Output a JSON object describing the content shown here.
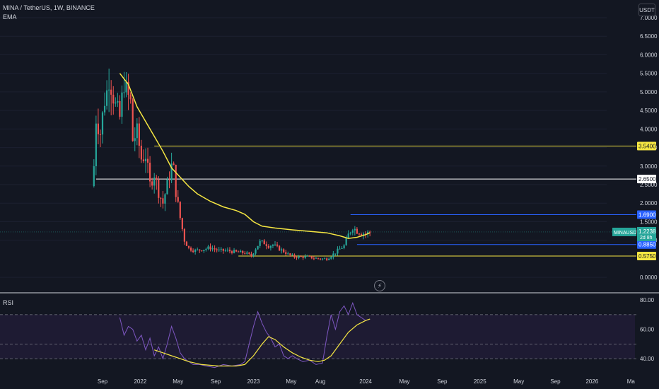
{
  "header": {
    "title": "MINA / TetherUS, 1W, BINANCE",
    "indicator": "EMA",
    "currency": "USDT",
    "rsi_label": "RSI"
  },
  "colors": {
    "background": "#131722",
    "up": "#26a69a",
    "down": "#ef5350",
    "ema": "#f5e642",
    "rsi_line": "#7e57c2",
    "rsi_ma": "#f5e642",
    "rsi_band": "#1e1b33",
    "white_line": "#ffffff",
    "blue_line": "#2962ff"
  },
  "chart_data": [
    {
      "type": "candlestick",
      "title": "MINA / TetherUS, 1W, BINANCE",
      "y_ticks": [
        "0.0000",
        "1.0000",
        "1.5000",
        "2.0000",
        "2.5000",
        "3.0000",
        "3.5000",
        "4.0000",
        "4.5000",
        "5.0000",
        "5.5000",
        "6.0000",
        "6.5000",
        "7.0000"
      ],
      "ylim": [
        -0.15,
        7.0
      ],
      "x_ticks": [
        {
          "label": "Sep",
          "t": 0
        },
        {
          "label": "2022",
          "t": 17.5
        },
        {
          "label": "May",
          "t": 35
        },
        {
          "label": "Sep",
          "t": 52.5
        },
        {
          "label": "2023",
          "t": 70
        },
        {
          "label": "May",
          "t": 87.5
        },
        {
          "label": "Aug",
          "t": 101
        },
        {
          "label": "2024",
          "t": 122
        },
        {
          "label": "May",
          "t": 140
        },
        {
          "label": "Sep",
          "t": 157.5
        },
        {
          "label": "2025",
          "t": 175
        },
        {
          "label": "May",
          "t": 193
        },
        {
          "label": "Sep",
          "t": 210
        },
        {
          "label": "2026",
          "t": 227
        },
        {
          "label": "Ma",
          "t": 245
        }
      ],
      "key_points": [
        [
          -4,
          3.0
        ],
        [
          -3,
          4.3
        ],
        [
          -1,
          3.9
        ],
        [
          1,
          4.8
        ],
        [
          2,
          5.0
        ],
        [
          3,
          5.4
        ],
        [
          4,
          5.2
        ],
        [
          6,
          4.6
        ],
        [
          8,
          4.3
        ],
        [
          10,
          5.3
        ],
        [
          11,
          5.0
        ],
        [
          13,
          4.7
        ],
        [
          14,
          3.7
        ],
        [
          16,
          3.9
        ],
        [
          18,
          3.2
        ],
        [
          20,
          3.3
        ],
        [
          22,
          2.5
        ],
        [
          24,
          2.8
        ],
        [
          26,
          2.3
        ],
        [
          28,
          2.0
        ],
        [
          30,
          2.5
        ],
        [
          32,
          3.0
        ],
        [
          33,
          2.9
        ],
        [
          34,
          2.3
        ],
        [
          36,
          1.6
        ],
        [
          38,
          1.0
        ],
        [
          40,
          0.78
        ],
        [
          43,
          0.72
        ],
        [
          46,
          0.75
        ],
        [
          50,
          0.8
        ],
        [
          54,
          0.72
        ],
        [
          58,
          0.72
        ],
        [
          62,
          0.68
        ],
        [
          66,
          0.66
        ],
        [
          69,
          0.58
        ],
        [
          71,
          0.78
        ],
        [
          73,
          0.95
        ],
        [
          75,
          0.93
        ],
        [
          77,
          0.85
        ],
        [
          79,
          0.88
        ],
        [
          81,
          0.8
        ],
        [
          84,
          0.7
        ],
        [
          86,
          0.62
        ],
        [
          89,
          0.55
        ],
        [
          92,
          0.55
        ],
        [
          95,
          0.55
        ],
        [
          98,
          0.52
        ],
        [
          101,
          0.5
        ],
        [
          104,
          0.5
        ],
        [
          106,
          0.58
        ],
        [
          109,
          0.72
        ],
        [
          112,
          0.85
        ],
        [
          114,
          1.15
        ],
        [
          116,
          1.35
        ],
        [
          118,
          1.25
        ],
        [
          120,
          1.2
        ],
        [
          122,
          1.18
        ],
        [
          124,
          1.22
        ]
      ],
      "ema_path": [
        [
          8,
          5.5
        ],
        [
          12,
          5.2
        ],
        [
          16,
          4.6
        ],
        [
          20,
          4.2
        ],
        [
          24,
          3.8
        ],
        [
          28,
          3.4
        ],
        [
          32,
          2.95
        ],
        [
          36,
          2.7
        ],
        [
          40,
          2.45
        ],
        [
          44,
          2.25
        ],
        [
          50,
          2.05
        ],
        [
          56,
          1.9
        ],
        [
          62,
          1.8
        ],
        [
          66,
          1.7
        ],
        [
          70,
          1.5
        ],
        [
          74,
          1.38
        ],
        [
          80,
          1.33
        ],
        [
          88,
          1.28
        ],
        [
          96,
          1.24
        ],
        [
          104,
          1.2
        ],
        [
          110,
          1.12
        ],
        [
          114,
          1.05
        ],
        [
          118,
          1.08
        ],
        [
          122,
          1.15
        ],
        [
          124,
          1.2
        ]
      ],
      "levels": [
        {
          "name": "level-3540",
          "value": 3.54,
          "label": "3.5400",
          "color": "#f5e642",
          "start_t": 24
        },
        {
          "name": "level-2650",
          "value": 2.65,
          "label": "2.6500",
          "color": "#ffffff",
          "start_t": -3
        },
        {
          "name": "level-1690",
          "value": 1.69,
          "label": "1.6900",
          "color": "#2962ff",
          "start_t": 115
        },
        {
          "name": "level-0885",
          "value": 0.885,
          "label": "0.8850",
          "color": "#2962ff",
          "start_t": 118
        },
        {
          "name": "level-0575",
          "value": 0.575,
          "label": "0.5750",
          "color": "#f5e642",
          "start_t": 63
        }
      ],
      "current": {
        "symbol": "MINAUSDT",
        "price": "1.2238",
        "countdown": "2d 8h",
        "value": 1.2238
      }
    },
    {
      "type": "line",
      "y_ticks": [
        "40.00",
        "60.00",
        "80.00"
      ],
      "ylim": [
        28,
        82
      ],
      "bands": [
        40,
        50,
        70
      ],
      "rsi_points": [
        [
          8,
          68
        ],
        [
          10,
          56
        ],
        [
          12,
          62
        ],
        [
          14,
          60
        ],
        [
          16,
          52
        ],
        [
          18,
          56
        ],
        [
          20,
          46
        ],
        [
          22,
          54
        ],
        [
          24,
          42
        ],
        [
          26,
          48
        ],
        [
          28,
          40
        ],
        [
          30,
          50
        ],
        [
          32,
          62
        ],
        [
          34,
          54
        ],
        [
          36,
          44
        ],
        [
          38,
          40
        ],
        [
          40,
          38
        ],
        [
          42,
          36
        ],
        [
          45,
          36
        ],
        [
          48,
          35
        ],
        [
          52,
          34
        ],
        [
          56,
          36
        ],
        [
          60,
          35
        ],
        [
          64,
          36
        ],
        [
          66,
          38
        ],
        [
          68,
          50
        ],
        [
          70,
          62
        ],
        [
          72,
          72
        ],
        [
          74,
          64
        ],
        [
          76,
          58
        ],
        [
          78,
          54
        ],
        [
          80,
          48
        ],
        [
          82,
          50
        ],
        [
          84,
          42
        ],
        [
          86,
          40
        ],
        [
          88,
          42
        ],
        [
          90,
          40
        ],
        [
          93,
          38
        ],
        [
          96,
          39
        ],
        [
          99,
          36
        ],
        [
          102,
          37
        ],
        [
          104,
          55
        ],
        [
          106,
          70
        ],
        [
          108,
          60
        ],
        [
          110,
          72
        ],
        [
          112,
          76
        ],
        [
          114,
          70
        ],
        [
          116,
          78
        ],
        [
          118,
          70
        ],
        [
          120,
          68
        ],
        [
          122,
          66
        ],
        [
          124,
          67
        ]
      ],
      "rsi_ma_points": [
        [
          24,
          46
        ],
        [
          28,
          44
        ],
        [
          32,
          42
        ],
        [
          36,
          40
        ],
        [
          40,
          38
        ],
        [
          46,
          36
        ],
        [
          54,
          35
        ],
        [
          62,
          35
        ],
        [
          66,
          36
        ],
        [
          70,
          42
        ],
        [
          74,
          50
        ],
        [
          77,
          55
        ],
        [
          80,
          53
        ],
        [
          84,
          48
        ],
        [
          88,
          44
        ],
        [
          92,
          41
        ],
        [
          96,
          39
        ],
        [
          100,
          38
        ],
        [
          103,
          39
        ],
        [
          106,
          42
        ],
        [
          110,
          50
        ],
        [
          114,
          58
        ],
        [
          118,
          63
        ],
        [
          122,
          66
        ],
        [
          124,
          67
        ]
      ]
    }
  ]
}
